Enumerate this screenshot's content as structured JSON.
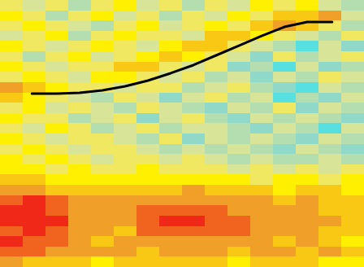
{
  "chart_data": {
    "type": "heatmap",
    "tick_labels": false,
    "xlim": [
      0,
      16
    ],
    "ylim": [
      0,
      26
    ],
    "zlim": [
      0,
      10
    ],
    "cells": [
      [
        5,
        4,
        5,
        3,
        5,
        6,
        4,
        5,
        3,
        5,
        4,
        6,
        5,
        6,
        4,
        3
      ],
      [
        6,
        5,
        3,
        5,
        6,
        4,
        5,
        3,
        5,
        4,
        6,
        5,
        7,
        7,
        8,
        4
      ],
      [
        5,
        6,
        5,
        4,
        3,
        5,
        6,
        4,
        5,
        6,
        5,
        7,
        8,
        7,
        5,
        3
      ],
      [
        4,
        5,
        6,
        3,
        5,
        6,
        5,
        5,
        4,
        7,
        7,
        6,
        5,
        4,
        3,
        5
      ],
      [
        6,
        5,
        4,
        5,
        6,
        5,
        4,
        6,
        7,
        7,
        5,
        4,
        3,
        1,
        4,
        2
      ],
      [
        5,
        3,
        5,
        6,
        4,
        5,
        6,
        7,
        6,
        5,
        4,
        2,
        5,
        3,
        4,
        5
      ],
      [
        6,
        5,
        4,
        5,
        5,
        7,
        7,
        5,
        4,
        5,
        2,
        3,
        1,
        4,
        2,
        3
      ],
      [
        5,
        6,
        5,
        4,
        6,
        6,
        5,
        4,
        5,
        3,
        4,
        2,
        4,
        3,
        5,
        4
      ],
      [
        8,
        7,
        6,
        5,
        5,
        4,
        5,
        5,
        3,
        4,
        5,
        3,
        2,
        1,
        4,
        3
      ],
      [
        7,
        6,
        5,
        4,
        3,
        5,
        4,
        2,
        4,
        5,
        3,
        4,
        1,
        3,
        2,
        4
      ],
      [
        5,
        6,
        4,
        5,
        4,
        3,
        5,
        4,
        3,
        2,
        4,
        3,
        5,
        2,
        4,
        3
      ],
      [
        6,
        5,
        5,
        3,
        4,
        5,
        2,
        4,
        5,
        3,
        2,
        4,
        3,
        4,
        3,
        2
      ],
      [
        5,
        4,
        6,
        5,
        3,
        4,
        5,
        3,
        4,
        4,
        3,
        2,
        4,
        3,
        1,
        4
      ],
      [
        6,
        5,
        4,
        5,
        5,
        4,
        3,
        5,
        2,
        4,
        3,
        4,
        3,
        2,
        4,
        3
      ],
      [
        5,
        6,
        5,
        4,
        5,
        5,
        4,
        3,
        4,
        3,
        4,
        3,
        2,
        4,
        3,
        2
      ],
      [
        6,
        5,
        6,
        5,
        4,
        5,
        5,
        4,
        5,
        4,
        3,
        4,
        3,
        3,
        4,
        3
      ],
      [
        6,
        6,
        5,
        6,
        5,
        5,
        6,
        5,
        5,
        5,
        4,
        5,
        4,
        5,
        4,
        5
      ],
      [
        7,
        7,
        6,
        6,
        6,
        6,
        6,
        6,
        6,
        6,
        6,
        5,
        6,
        6,
        5,
        6
      ],
      [
        8,
        8,
        7,
        7,
        7,
        7,
        7,
        7,
        8,
        7,
        7,
        7,
        6,
        7,
        7,
        6
      ],
      [
        9,
        10,
        9,
        8,
        8,
        8,
        8,
        8,
        8,
        8,
        8,
        8,
        7,
        8,
        7,
        7
      ],
      [
        10,
        10,
        9,
        8,
        8,
        8,
        9,
        9,
        9,
        9,
        8,
        8,
        8,
        8,
        7,
        7
      ],
      [
        10,
        10,
        10,
        8,
        8,
        8,
        9,
        10,
        10,
        9,
        9,
        8,
        8,
        8,
        8,
        7
      ],
      [
        9,
        10,
        9,
        8,
        8,
        7,
        9,
        9,
        9,
        9,
        9,
        8,
        8,
        8,
        7,
        7
      ],
      [
        10,
        9,
        9,
        8,
        7,
        8,
        8,
        8,
        8,
        8,
        8,
        8,
        7,
        8,
        7,
        6
      ],
      [
        9,
        9,
        8,
        8,
        8,
        8,
        7,
        8,
        8,
        8,
        7,
        8,
        8,
        7,
        8,
        7
      ],
      [
        8,
        7,
        7,
        7,
        6,
        7,
        7,
        7,
        7,
        7,
        6,
        7,
        7,
        7,
        6,
        6
      ]
    ],
    "series": [
      {
        "type": "line",
        "color": "#000000",
        "x": [
          1.4,
          2.5,
          3.5,
          4.5,
          5.5,
          6.5,
          7.5,
          8.5,
          9.5,
          10.5,
          11.5,
          12.5,
          13.5,
          14.6
        ],
        "values": [
          16.88,
          16.88,
          16.96,
          17.2,
          17.6,
          18.15,
          18.87,
          19.66,
          20.61,
          21.56,
          22.51,
          23.38,
          23.86,
          23.86
        ]
      }
    ]
  }
}
